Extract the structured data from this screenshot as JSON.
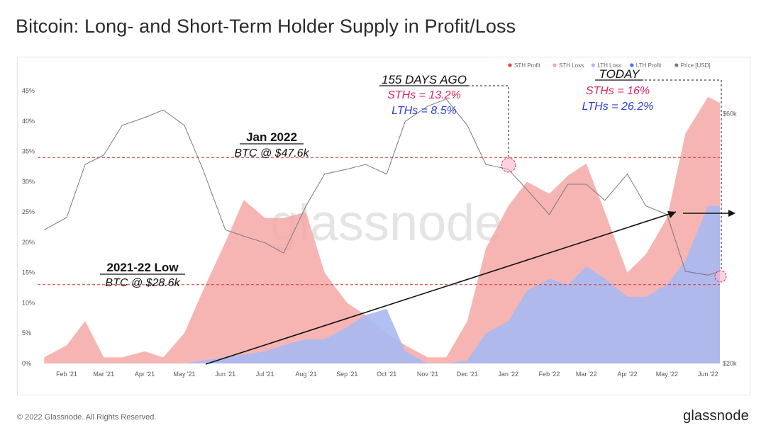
{
  "title": "Bitcoin: Long- and Short-Term Holder Supply in Profit/Loss",
  "footer": {
    "copyright": "© 2022 Glassnode. All Rights Reserved.",
    "logo": "glassnode"
  },
  "watermark": "glassnode",
  "colors": {
    "sth_profit": "#e8423f",
    "sth_loss": "#f4a8a6",
    "lth_loss": "#a9b9f2",
    "lth_profit": "#4c6ef5",
    "price": "#7a7a7a",
    "ref_line": "#e03131",
    "annotation_red": "#e0245e",
    "annotation_blue": "#2b3fd6"
  },
  "chart_data": {
    "type": "area",
    "legend_position": "top-right",
    "legend": [
      {
        "name": "STH Profit",
        "color": "#e8423f"
      },
      {
        "name": "STH Loss",
        "color": "#f4a8a6"
      },
      {
        "name": "LTH Loss",
        "color": "#a9b9f2"
      },
      {
        "name": "LTH Profit",
        "color": "#4c6ef5"
      },
      {
        "name": "Price [USD]",
        "color": "#7a7a7a"
      }
    ],
    "x_ticks": [
      "Feb '21",
      "Mar '21",
      "Apr '21",
      "May '21",
      "Jun '21",
      "Jul '21",
      "Aug '21",
      "Sep '21",
      "Oct '21",
      "Nov '21",
      "Dec '21",
      "Jan '22",
      "Feb '22",
      "Mar '22",
      "Apr '22",
      "May '22",
      "Jun '22"
    ],
    "y_left_ticks": [
      "0%",
      "5%",
      "10%",
      "15%",
      "20%",
      "25%",
      "30%",
      "35%",
      "40%",
      "45%"
    ],
    "y_left_range": [
      0,
      47
    ],
    "y_right_ticks": [
      "$20k",
      "$60k"
    ],
    "y_right_scale": "log",
    "x": [
      "2021-01-15",
      "2021-02-01",
      "2021-02-15",
      "2021-03-01",
      "2021-03-15",
      "2021-04-01",
      "2021-04-15",
      "2021-05-01",
      "2021-05-15",
      "2021-06-01",
      "2021-06-15",
      "2021-07-01",
      "2021-07-15",
      "2021-08-01",
      "2021-08-15",
      "2021-09-01",
      "2021-09-15",
      "2021-10-01",
      "2021-10-15",
      "2021-11-01",
      "2021-11-15",
      "2021-12-01",
      "2021-12-15",
      "2022-01-01",
      "2022-01-15",
      "2022-02-01",
      "2022-02-15",
      "2022-03-01",
      "2022-03-15",
      "2022-04-01",
      "2022-04-15",
      "2022-05-01",
      "2022-05-15",
      "2022-06-01",
      "2022-06-10"
    ],
    "series": [
      {
        "name": "STH Loss",
        "unit": "%",
        "values": [
          1,
          3,
          7,
          1,
          1,
          2,
          1,
          5,
          12,
          20,
          27,
          24,
          24,
          25,
          15,
          10,
          8,
          5,
          3,
          1,
          1,
          7,
          19,
          26,
          30,
          28,
          31,
          33,
          25,
          15,
          18,
          24,
          38,
          44,
          43
        ]
      },
      {
        "name": "LTH Loss",
        "unit": "%",
        "values": [
          0,
          0,
          0,
          0,
          0,
          0,
          0,
          0,
          0.5,
          1,
          1.5,
          2,
          3,
          4,
          4,
          6,
          8,
          9,
          2,
          0,
          0,
          0.5,
          5,
          7,
          12,
          14,
          13,
          16,
          14,
          11,
          11,
          13,
          17,
          26,
          26
        ]
      },
      {
        "name": "Price [USD]",
        "unit": "USD",
        "values": [
          36000,
          38000,
          48000,
          50000,
          57000,
          59000,
          61000,
          57000,
          47000,
          36000,
          35000,
          34000,
          32500,
          40000,
          46000,
          47000,
          48000,
          46000,
          58000,
          62000,
          64000,
          57000,
          48000,
          47000,
          43000,
          38500,
          44000,
          44000,
          41000,
          46000,
          40000,
          38500,
          30000,
          29500,
          30000
        ]
      }
    ],
    "annotations": [
      {
        "label": "Jan 2022",
        "sub": "BTC @ $47.6k",
        "level_pct": 34
      },
      {
        "label": "2021-22 Low",
        "sub": "BTC @ $28.6k",
        "level_pct": 13
      },
      {
        "label": "155 DAYS AGO",
        "sth": "STHs = 13.2%",
        "lth": "LTHs = 8.5%"
      },
      {
        "label": "TODAY",
        "sth": "STHs = 16%",
        "lth": "LTHs = 26.2%"
      }
    ]
  }
}
